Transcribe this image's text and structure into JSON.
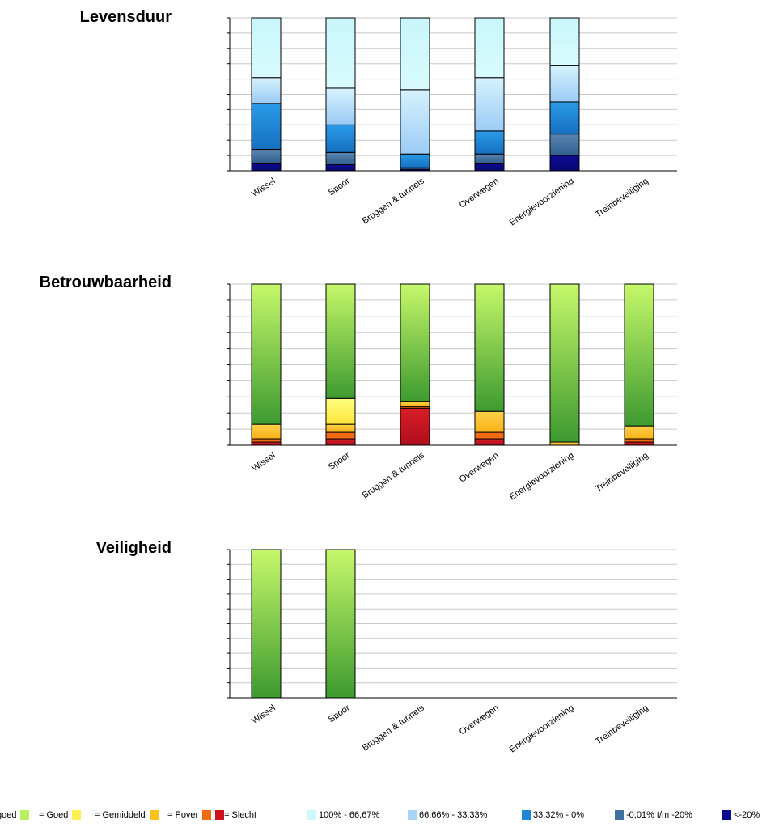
{
  "titles": [
    "Levensduur",
    "Betrouwbaarheid",
    "Veiligheid"
  ],
  "chart_data": [
    {
      "type": "bar",
      "stacked": true,
      "title": "Levensduur",
      "categories": [
        "Wissel",
        "Spoor",
        "Bruggen & tunnels",
        "Overwegen",
        "Energievoorziening",
        "Treinbeveiliging"
      ],
      "ylim": [
        0,
        100
      ],
      "grid": true,
      "series": [
        {
          "name": "<-20%",
          "color": "#0a0a8c",
          "values": [
            5,
            4,
            1,
            5,
            10,
            0
          ]
        },
        {
          "name": "-0,01% t/m -20%",
          "color": "#3f6f9e",
          "values": [
            9,
            8,
            1,
            6,
            14,
            0
          ]
        },
        {
          "name": "33,32% - 0%",
          "color": "#1f86d6",
          "values": [
            30,
            18,
            9,
            15,
            21,
            0
          ]
        },
        {
          "name": "66,66% - 33,33%",
          "color": "#a8d4f8",
          "values": [
            17,
            24,
            42,
            35,
            24,
            0
          ]
        },
        {
          "name": "100% - 66,67%",
          "color": "#cdf7fb",
          "values": [
            39,
            46,
            47,
            39,
            31,
            0
          ]
        }
      ]
    },
    {
      "type": "bar",
      "stacked": true,
      "title": "Betrouwbaarheid",
      "categories": [
        "Wissel",
        "Spoor",
        "Bruggen & tunnels",
        "Overwegen",
        "Energievoorziening",
        "Treinbeveiliging"
      ],
      "ylim": [
        0,
        100
      ],
      "grid": true,
      "series": [
        {
          "name": "= Slecht",
          "color": "#cc1020",
          "values": [
            2,
            4,
            23,
            4,
            0,
            2
          ]
        },
        {
          "name": "= Pover",
          "color": "#f06a10",
          "values": [
            2,
            4,
            1,
            4,
            0,
            2
          ]
        },
        {
          "name": "= Gemiddeld",
          "color": "#ffc21a",
          "values": [
            9,
            5,
            3,
            13,
            2,
            8
          ]
        },
        {
          "name": "= Goed",
          "color": "#fdf050",
          "values": [
            0,
            16,
            0,
            0,
            0,
            0
          ]
        },
        {
          "name": "goed",
          "color": "#8ed050",
          "values": [
            87,
            71,
            73,
            79,
            98,
            88
          ]
        }
      ]
    },
    {
      "type": "bar",
      "stacked": true,
      "title": "Veiligheid",
      "categories": [
        "Wissel",
        "Spoor",
        "Bruggen & tunnels",
        "Overwegen",
        "Energievoorziening",
        "Treinbeveiliging"
      ],
      "ylim": [
        0,
        100
      ],
      "grid": true,
      "series": [
        {
          "name": "goed",
          "color": "#8ed050",
          "values": [
            100,
            100,
            0,
            0,
            0,
            0
          ]
        }
      ]
    }
  ],
  "legend": [
    {
      "label": "goed",
      "color": "#b8f060"
    },
    {
      "label": "= Goed",
      "color": "#fdf050"
    },
    {
      "label": "= Gemiddeld",
      "color": "#ffc21a"
    },
    {
      "label": "= Pover",
      "color": "#f06a10"
    },
    {
      "label": "= Slecht",
      "color": "#cc1020"
    },
    {
      "label": "100% - 66,67%",
      "color": "#cdf7fb"
    },
    {
      "label": "66,66% - 33,33%",
      "color": "#a8d4f8"
    },
    {
      "label": "33,32% - 0%",
      "color": "#1f86d6"
    },
    {
      "label": "-0,01% t/m -20%",
      "color": "#3f6f9e"
    },
    {
      "label": "<-20%",
      "color": "#0a0a8c"
    }
  ]
}
